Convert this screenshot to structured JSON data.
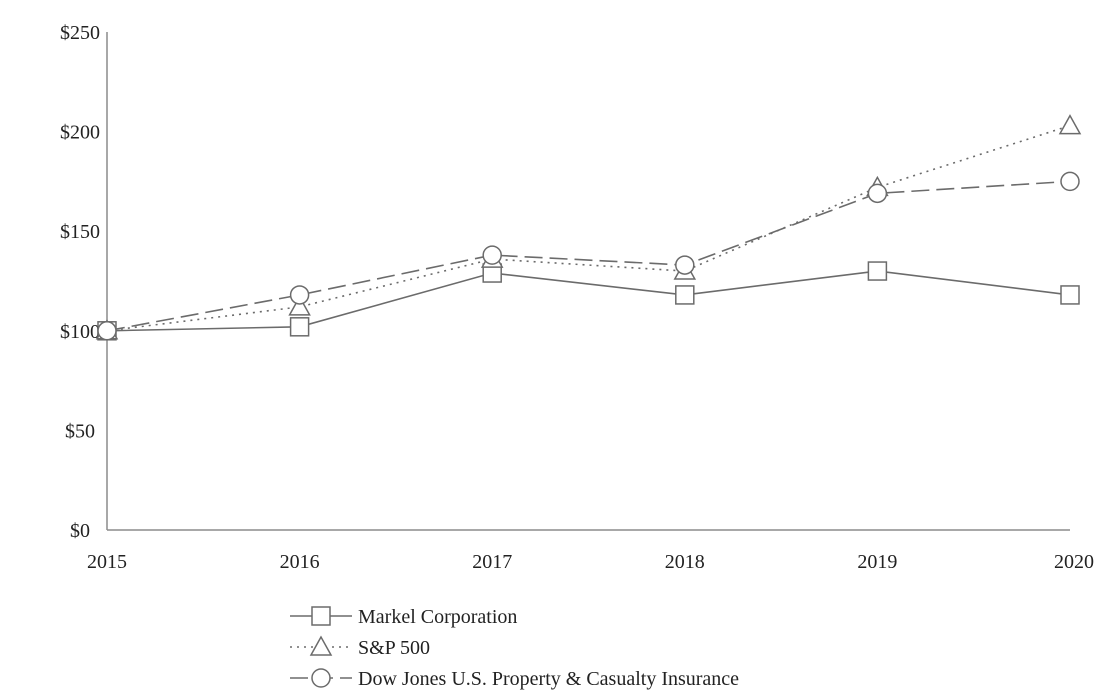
{
  "chart_data": {
    "type": "line",
    "title": "",
    "xlabel": "",
    "ylabel": "",
    "x": [
      "2015",
      "2016",
      "2017",
      "2018",
      "2019",
      "2020"
    ],
    "ylim": [
      0,
      250
    ],
    "y_ticks": [
      0,
      50,
      100,
      150,
      200,
      250
    ],
    "y_tick_labels": [
      "$0",
      "$50",
      "$100",
      "$150",
      "$200",
      "$250"
    ],
    "grid": false,
    "legend_position": "bottom",
    "series": [
      {
        "name": "Markel Corporation",
        "values": [
          100,
          102,
          129,
          118,
          130,
          118
        ],
        "marker": "square",
        "line_style": "solid"
      },
      {
        "name": "S&P 500",
        "values": [
          100,
          112,
          136,
          130,
          172,
          203
        ],
        "marker": "triangle",
        "line_style": "dotted"
      },
      {
        "name": "Dow Jones U.S. Property & Casualty Insurance",
        "values": [
          100,
          118,
          138,
          133,
          169,
          175
        ],
        "marker": "circle",
        "line_style": "dashed"
      }
    ],
    "colors": {
      "line": "#6b6b6b",
      "axis": "#8c8c8c",
      "text": "#222222",
      "marker_fill": "#ffffff"
    }
  }
}
